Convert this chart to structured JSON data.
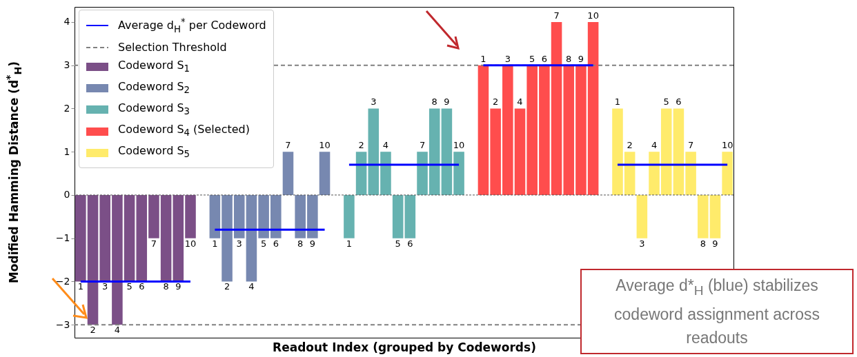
{
  "chart_data": {
    "type": "bar",
    "xlabel": "Readout Index (grouped by Codewords)",
    "ylabel": "Modified Hamming Distance (d$^{*}$$_{H}$)",
    "categories": [
      "1",
      "2",
      "3",
      "4",
      "5",
      "6",
      "7",
      "8",
      "9",
      "10",
      null,
      "1",
      "2",
      "3",
      "4",
      "5",
      "6",
      "7",
      "8",
      "9",
      "10",
      null,
      "1",
      "2",
      "3",
      "4",
      "5",
      "6",
      "7",
      "8",
      "9",
      "10",
      null,
      "1",
      "2",
      "3",
      "4",
      "5",
      "6",
      "7",
      "8",
      "9",
      "10",
      null,
      "1",
      "2",
      "3",
      "4",
      "5",
      "6",
      "7",
      "8",
      "9",
      "10"
    ],
    "ylim": [
      -3.3,
      4.35
    ],
    "yticks": [
      -3,
      -2,
      -1,
      0,
      1,
      2,
      3,
      4
    ],
    "tick_labels": "y",
    "legend": "top left",
    "series": [
      {
        "name": "Average d$_{H}$$^{*}$ per Codeword",
        "type": "line",
        "color": "#0000ff",
        "values": [
          -2,
          -2,
          -2,
          -2,
          -2,
          -2,
          -2,
          -2,
          -2,
          -2,
          null,
          -0.8,
          -0.8,
          -0.8,
          -0.8,
          -0.8,
          -0.8,
          -0.8,
          -0.8,
          -0.8,
          -0.8,
          null,
          0.7,
          0.7,
          0.7,
          0.7,
          0.7,
          0.7,
          0.7,
          0.7,
          0.7,
          0.7,
          null,
          3.0,
          3.0,
          3.0,
          3.0,
          3.0,
          3.0,
          3.0,
          3.0,
          3.0,
          3.0,
          null,
          0.7,
          0.7,
          0.7,
          0.7,
          0.7,
          0.7,
          0.7,
          0.7,
          0.7,
          0.7
        ]
      },
      {
        "name": "Codeword S$_{1}$",
        "color": "#7b4f87",
        "values": [
          -2,
          -3,
          -2,
          -3,
          -2,
          -2,
          -1,
          -2,
          -2,
          -1,
          null,
          null,
          null,
          null,
          null,
          null,
          null,
          null,
          null,
          null,
          null,
          null,
          null,
          null,
          null,
          null,
          null,
          null,
          null,
          null,
          null,
          null,
          null,
          null,
          null,
          null,
          null,
          null,
          null,
          null,
          null,
          null,
          null,
          null,
          null,
          null,
          null,
          null,
          null,
          null,
          null,
          null,
          null,
          null
        ]
      },
      {
        "name": "Codeword S$_{2}$",
        "color": "#7788b0",
        "values": [
          null,
          null,
          null,
          null,
          null,
          null,
          null,
          null,
          null,
          null,
          null,
          -1,
          -2,
          -1,
          -2,
          -1,
          -1,
          1,
          -1,
          -1,
          1,
          null,
          null,
          null,
          null,
          null,
          null,
          null,
          null,
          null,
          null,
          null,
          null,
          null,
          null,
          null,
          null,
          null,
          null,
          null,
          null,
          null,
          null,
          null,
          null,
          null,
          null,
          null,
          null,
          null,
          null,
          null,
          null,
          null
        ]
      },
      {
        "name": "Codeword S$_{3}$",
        "color": "#66b2b0",
        "values": [
          null,
          null,
          null,
          null,
          null,
          null,
          null,
          null,
          null,
          null,
          null,
          null,
          null,
          null,
          null,
          null,
          null,
          null,
          null,
          null,
          null,
          null,
          -1,
          1,
          2,
          1,
          -1,
          -1,
          1,
          2,
          2,
          1,
          null,
          null,
          null,
          null,
          null,
          null,
          null,
          null,
          null,
          null,
          null,
          null,
          null,
          null,
          null,
          null,
          null,
          null,
          null,
          null,
          null,
          null
        ]
      },
      {
        "name": "Codeword S$_{4}$ (Selected)",
        "color": "#ff4d4d",
        "values": [
          null,
          null,
          null,
          null,
          null,
          null,
          null,
          null,
          null,
          null,
          null,
          null,
          null,
          null,
          null,
          null,
          null,
          null,
          null,
          null,
          null,
          null,
          null,
          null,
          null,
          null,
          null,
          null,
          null,
          null,
          null,
          null,
          null,
          3,
          2,
          3,
          2,
          3,
          3,
          4,
          3,
          3,
          4,
          null,
          null,
          null,
          null,
          null,
          null,
          null,
          null,
          null,
          null,
          null
        ]
      },
      {
        "name": "Codeword S$_{5}$",
        "color": "#ffeb6b",
        "values": [
          null,
          null,
          null,
          null,
          null,
          null,
          null,
          null,
          null,
          null,
          null,
          null,
          null,
          null,
          null,
          null,
          null,
          null,
          null,
          null,
          null,
          null,
          null,
          null,
          null,
          null,
          null,
          null,
          null,
          null,
          null,
          null,
          null,
          null,
          null,
          null,
          null,
          null,
          null,
          null,
          null,
          null,
          null,
          null,
          2,
          1,
          -1,
          1,
          2,
          2,
          1,
          -1,
          -1,
          1
        ]
      }
    ],
    "ref_lines": [
      {
        "axis": "y",
        "value": 3,
        "label": "Selection Threshold",
        "color": "#808080",
        "line_style": "dashed"
      },
      {
        "axis": "y",
        "value": -3,
        "color": "#808080",
        "line_style": "dashed"
      },
      {
        "axis": "y",
        "value": 0,
        "color": "#555555",
        "line_style": "dotted"
      }
    ],
    "annotations": [
      "Average d*$_{H}$ (blue) stabilizes codeword assignment across readouts"
    ]
  }
}
